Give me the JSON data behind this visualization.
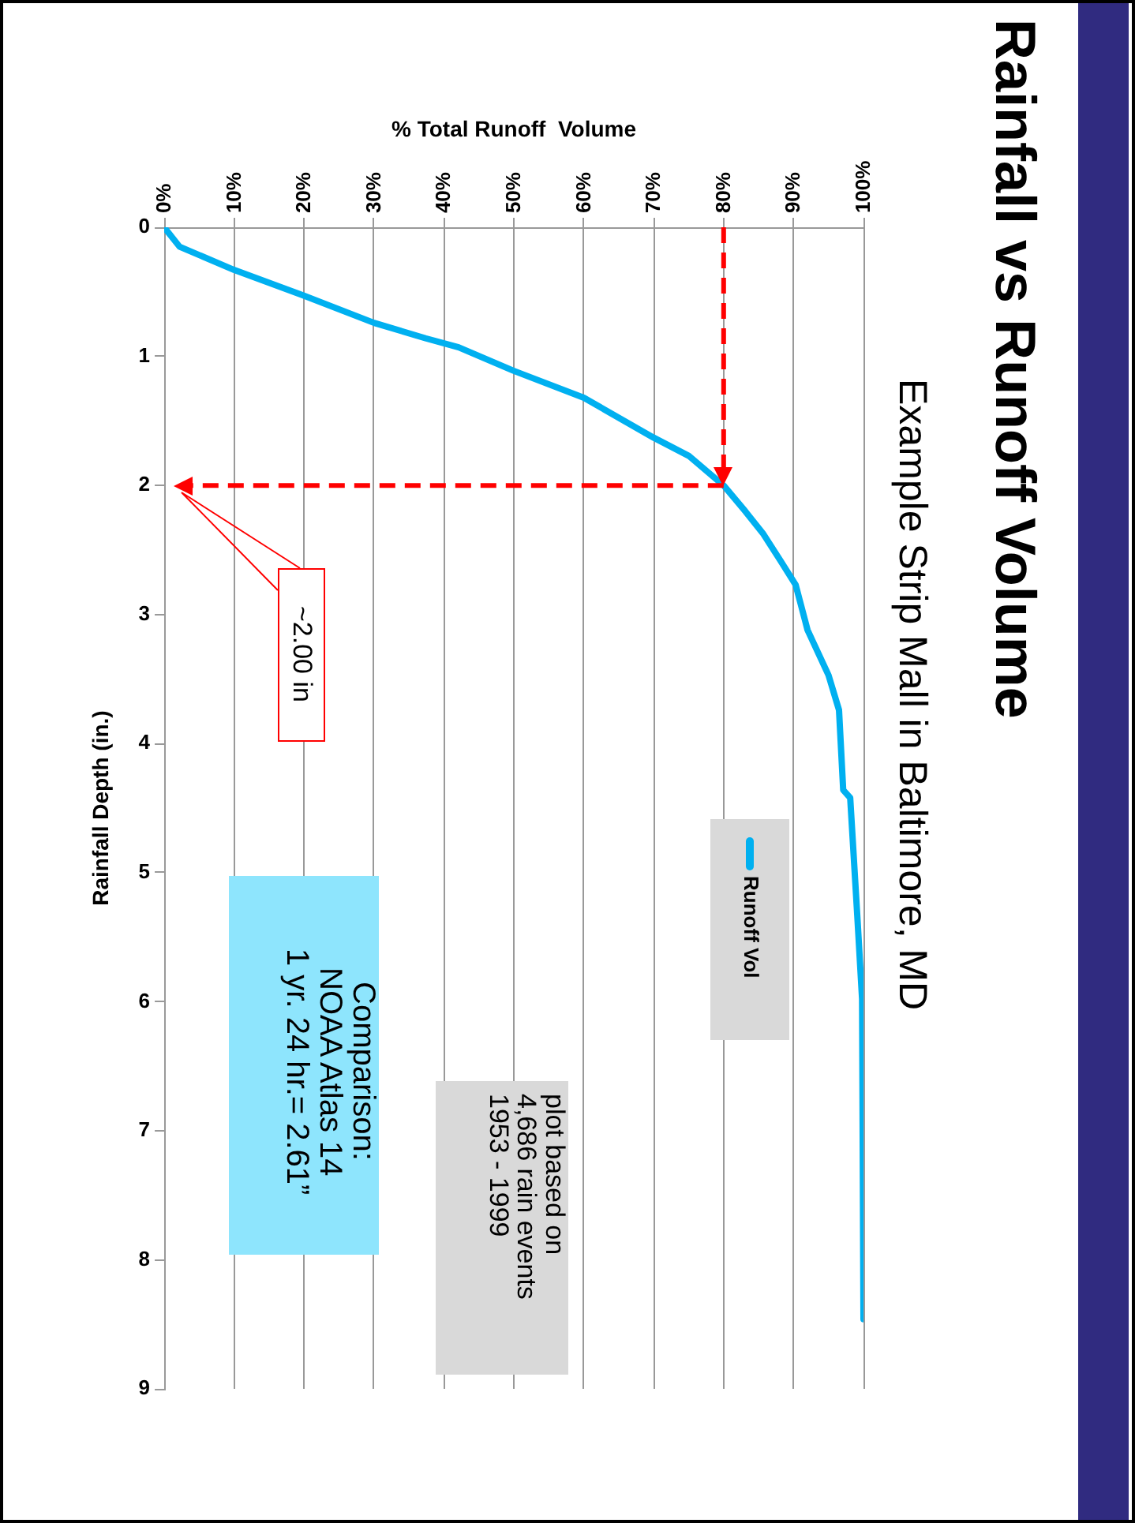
{
  "chart_data": {
    "type": "line",
    "title": "Rainfall vs Runoff Volume",
    "subtitle": "Example Strip Mall in Baltimore, MD",
    "xlabel": "% Total Runoff  Volume",
    "ylabel": "Rainfall Depth (in.)",
    "series": [
      {
        "name": "Runoff Vol",
        "color": "#00b0f0",
        "x": [
          0,
          2.2,
          10,
          20,
          30,
          37.4,
          42.1,
          49.9,
          60,
          70,
          75,
          80,
          83.1,
          85.6,
          88.1,
          90.3,
          92,
          95,
          96.5,
          97.1,
          98.1,
          99.1,
          99.8,
          100
        ],
        "values": [
          0,
          0.15,
          0.33,
          0.53,
          0.74,
          0.86,
          0.93,
          1.11,
          1.32,
          1.63,
          1.77,
          2.0,
          2.2,
          2.37,
          2.58,
          2.77,
          3.12,
          3.47,
          3.74,
          4.36,
          4.42,
          5.32,
          5.98,
          8.46
        ]
      }
    ],
    "xlim": [
      0,
      100
    ],
    "xticks": [
      {
        "value": 0,
        "label": "0%"
      },
      {
        "value": 10,
        "label": "10%"
      },
      {
        "value": 20,
        "label": "20%"
      },
      {
        "value": 30,
        "label": "30%"
      },
      {
        "value": 40,
        "label": "40%"
      },
      {
        "value": 50,
        "label": "50%"
      },
      {
        "value": 60,
        "label": "60%"
      },
      {
        "value": 70,
        "label": "70%"
      },
      {
        "value": 80,
        "label": "80%"
      },
      {
        "value": 90,
        "label": "90%"
      },
      {
        "value": 100,
        "label": "100%"
      }
    ],
    "ylim": [
      9,
      0
    ],
    "yticks": [
      0,
      1,
      2,
      3,
      4,
      5,
      6,
      7,
      8,
      9
    ],
    "ref_lines": [
      {
        "axis": "x",
        "value": 80,
        "color": "#ff0000",
        "line_style": "dashed"
      },
      {
        "axis": "y",
        "value": 2,
        "color": "#ff0000",
        "line_style": "dashed"
      }
    ],
    "annotations": [
      "plot based on\n4,686 rain events\n1953 - 1999",
      "Comparison:\nNOAA Atlas 14\n1 yr. 24 hr.= 2.61”",
      "~2.00 in"
    ],
    "grid": "x",
    "legend": "right",
    "marker": "none",
    "line_style": "solid"
  }
}
